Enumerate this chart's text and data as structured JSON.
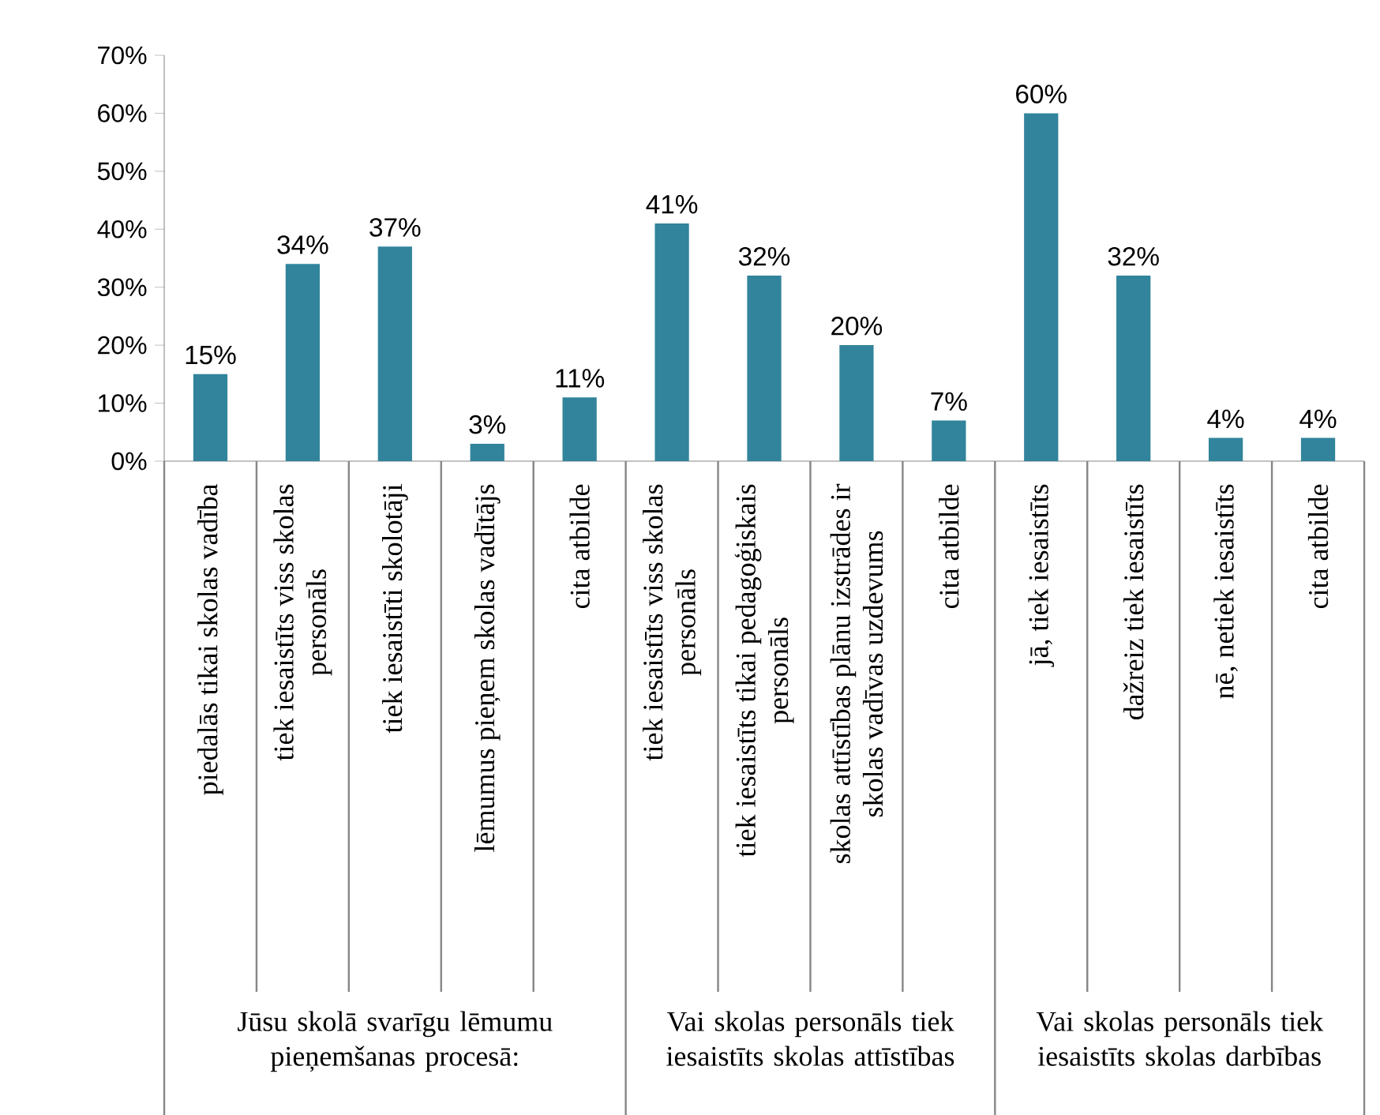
{
  "chart_data": {
    "type": "bar",
    "categories": [
      "piedalās tikai skolas vadība",
      "tiek iesaistīts viss skolas personāls",
      "tiek iesaistīti skolotāji",
      "lēmumus pieņem skolas vadītājs",
      "cita atbilde",
      "tiek iesaistīts viss skolas personāls",
      "tiek iesaistīts tikai pedagoģiskais personāls",
      "skolas attīstības plānu izstrādes ir skolas vadīvas uzdevums",
      "cita atbilde",
      "jā, tiek iesaistīts",
      "dažreiz tiek iesaistīts",
      "nē, netiek iesaistīts",
      "cita atbilde"
    ],
    "values": [
      15,
      34,
      37,
      3,
      11,
      41,
      32,
      20,
      7,
      60,
      32,
      4,
      4
    ],
    "value_labels": [
      "15%",
      "34%",
      "37%",
      "3%",
      "11%",
      "41%",
      "32%",
      "20%",
      "7%",
      "60%",
      "32%",
      "4%",
      "4%"
    ],
    "color": "#31849b",
    "ylim": [
      0,
      70
    ],
    "yticks": [
      {
        "value": 0,
        "label": "0%"
      },
      {
        "value": 10,
        "label": "10%"
      },
      {
        "value": 20,
        "label": "20%"
      },
      {
        "value": 30,
        "label": "30%"
      },
      {
        "value": 40,
        "label": "40%"
      },
      {
        "value": 50,
        "label": "50%"
      },
      {
        "value": 60,
        "label": "60%"
      },
      {
        "value": 70,
        "label": "70%"
      }
    ],
    "annotations": [
      "Jūsu skolā svarīgu lēmumu pieņemšanas procesā:",
      "Vai skolas personāls tiek iesaistīts skolas attīstības",
      "Vai skolas personāls tiek iesaistīts skolas darbības"
    ]
  }
}
